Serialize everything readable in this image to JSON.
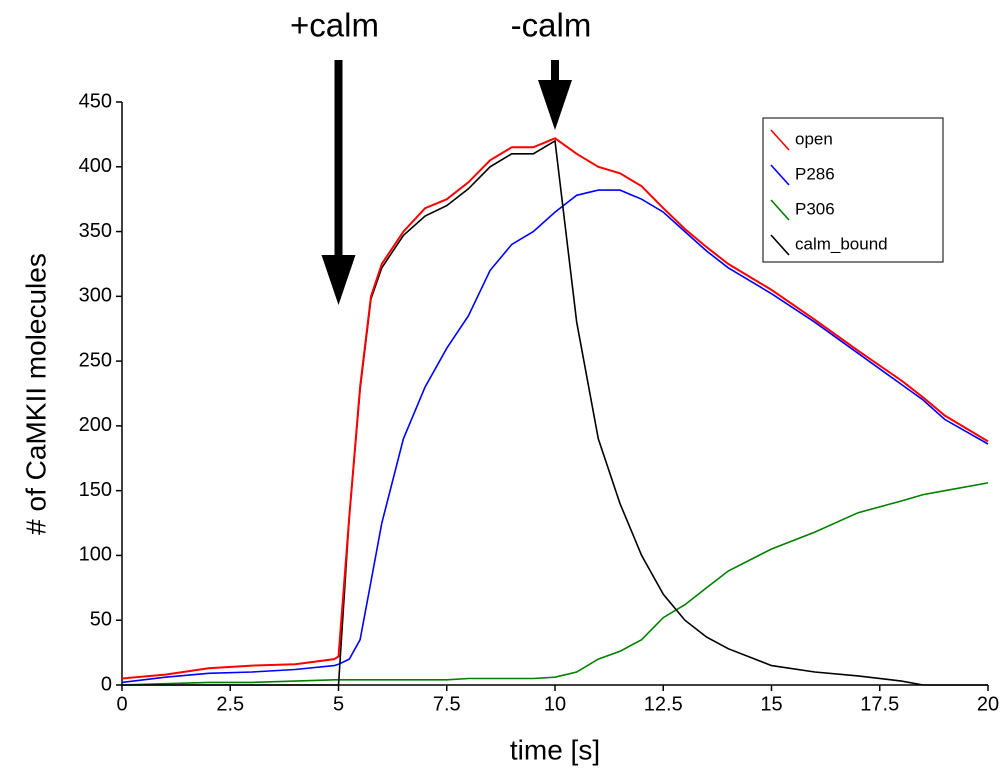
{
  "chart_data": {
    "type": "line",
    "x_label": "time [s]",
    "y_label": "# of CaMKII molecules",
    "x": [
      0,
      1,
      2,
      3,
      4,
      4.9,
      5,
      5.25,
      5.5,
      5.75,
      6,
      6.5,
      7,
      7.5,
      8,
      8.5,
      9,
      9.5,
      10,
      10.5,
      11,
      11.5,
      12,
      12.5,
      13,
      13.5,
      14,
      15,
      16,
      17,
      18,
      18.5,
      19,
      20
    ],
    "series": [
      {
        "name": "open",
        "color": "#ff0000",
        "values": [
          5,
          8,
          13,
          15,
          16,
          20,
          22,
          130,
          230,
          300,
          325,
          350,
          368,
          375,
          388,
          405,
          415,
          415,
          422,
          410,
          400,
          395,
          385,
          368,
          352,
          338,
          325,
          305,
          282,
          258,
          235,
          222,
          208,
          188
        ]
      },
      {
        "name": "P286",
        "color": "#0000ff",
        "values": [
          2,
          6,
          9,
          10,
          12,
          15,
          16,
          20,
          35,
          80,
          125,
          190,
          230,
          260,
          285,
          320,
          340,
          350,
          365,
          378,
          382,
          382,
          375,
          365,
          350,
          335,
          322,
          302,
          280,
          256,
          232,
          220,
          205,
          186
        ]
      },
      {
        "name": "P306",
        "color": "#008000",
        "values": [
          0,
          1,
          2,
          2,
          3,
          4,
          4,
          4,
          4,
          4,
          4,
          4,
          4,
          4,
          5,
          5,
          5,
          5,
          6,
          10,
          20,
          26,
          35,
          52,
          62,
          75,
          88,
          105,
          118,
          133,
          142,
          147,
          150,
          156
        ]
      },
      {
        "name": "calm_bound",
        "color": "#000000",
        "values": [
          0,
          0,
          0,
          0,
          0,
          0,
          0,
          130,
          228,
          298,
          322,
          347,
          362,
          370,
          383,
          400,
          410,
          410,
          420,
          280,
          190,
          140,
          100,
          70,
          50,
          37,
          28,
          15,
          10,
          7,
          3,
          0,
          0,
          0
        ]
      }
    ],
    "annotations": [
      {
        "text": "+calm",
        "x": 5
      },
      {
        "text": "-calm",
        "x": 10
      }
    ],
    "xlim": [
      0,
      20
    ],
    "xticks": [
      0,
      2.5,
      5,
      7.5,
      10,
      12.5,
      15,
      17.5,
      20
    ],
    "ylim": [
      0,
      450
    ],
    "yticks": [
      0,
      50,
      100,
      150,
      200,
      250,
      300,
      350,
      400,
      450
    ],
    "legend": "upper right"
  }
}
